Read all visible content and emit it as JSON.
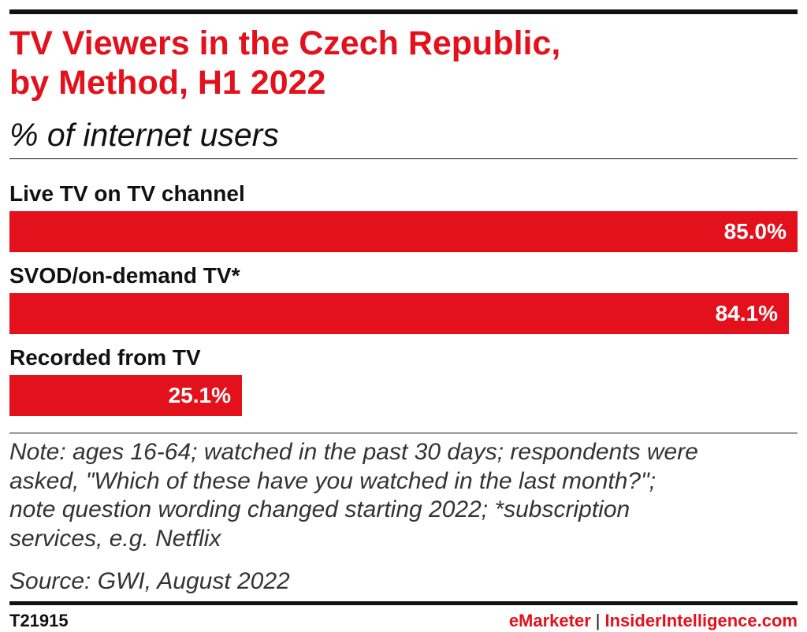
{
  "header": {
    "title_line1": "TV Viewers in the Czech Republic,",
    "title_line2": "by Method, H1 2022",
    "subtitle": "% of internet users"
  },
  "chart_data": {
    "type": "bar",
    "orientation": "horizontal",
    "title": "TV Viewers in the Czech Republic, by Method, H1 2022",
    "subtitle": "% of internet users",
    "categories": [
      "Live TV on TV channel",
      "SVOD/on-demand TV*",
      "Recorded from TV"
    ],
    "values": [
      85.0,
      84.1,
      25.1
    ],
    "value_labels": [
      "85.0%",
      "84.1%",
      "25.1%"
    ],
    "xlim": [
      0,
      85.0
    ],
    "grid": false,
    "bar_color": "#e3111c"
  },
  "footer": {
    "note_line1": "Note: ages 16-64; watched in the past 30 days; respondents were",
    "note_line2": "asked, \"Which of these have you watched in the last month?\";",
    "note_line3": "note question wording changed starting 2022; *subscription",
    "note_line4": "services, e.g. Netflix",
    "source": "Source: GWI, August 2022",
    "chart_id": "T21915",
    "brand_primary": "eMarketer",
    "brand_separator": "|",
    "brand_secondary": "InsiderIntelligence.com"
  },
  "colors": {
    "accent": "#e3111c",
    "text": "#111111",
    "note_text": "#333333"
  }
}
